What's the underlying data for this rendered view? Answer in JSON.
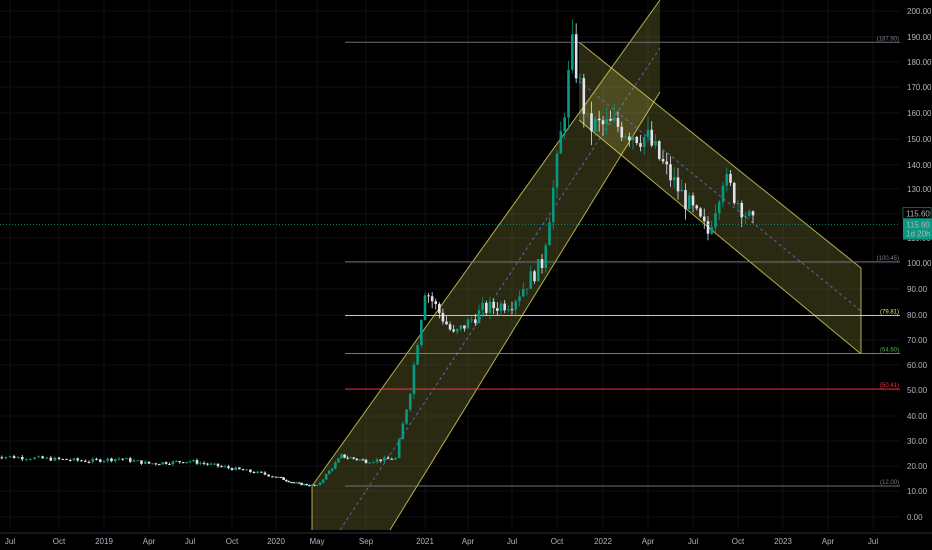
{
  "chart_data": {
    "type": "candlestick",
    "y_axis": {
      "scale": "log",
      "ticks": [
        "200.00",
        "190.00",
        "180.00",
        "170.00",
        "160.00",
        "150.00",
        "140.00",
        "130.00",
        "120.00",
        "110.00",
        "100.00",
        "90.00",
        "80.00",
        "70.00",
        "60.00",
        "50.00",
        "40.00",
        "30.00",
        "20.00",
        "10.00",
        "0.00"
      ]
    },
    "x_axis": {
      "ticks": [
        "Jul",
        "Oct",
        "2019",
        "Apr",
        "Jul",
        "Oct",
        "2020",
        "May",
        "Sep",
        "2021",
        "Apr",
        "Jul",
        "Oct",
        "2022",
        "Apr",
        "Jul",
        "Oct",
        "2023",
        "Apr",
        "Jul"
      ]
    },
    "last_price": {
      "value": "115.60",
      "countdown": "1d 20h",
      "ghost": "115.60",
      "color": "#089981"
    },
    "levels": [
      {
        "label": "(187.90)",
        "value": 187.9,
        "color": "#787b86"
      },
      {
        "label": "(100.45)",
        "value": 100.45,
        "color": "#787b86"
      },
      {
        "label": "(79.81)",
        "value": 79.81,
        "color": "#e8e361"
      },
      {
        "label": "(64.60)",
        "value": 64.6,
        "color": "#4caf50"
      },
      {
        "label": "(50.41)",
        "value": 50.41,
        "color": "#f23645"
      },
      {
        "label": "(12.00)",
        "value": 12.0,
        "color": "#787b86"
      }
    ],
    "channels": [
      {
        "name": "ascending",
        "color": "#e8e361"
      },
      {
        "name": "descending",
        "color": "#e8e361"
      }
    ],
    "colors": {
      "up": "#089981",
      "down": "#e0e3eb",
      "background": "#000000",
      "grid": "#2a2e39"
    },
    "price_path": [
      [
        "2018-06",
        24
      ],
      [
        "2018-09",
        23
      ],
      [
        "2018-12",
        22
      ],
      [
        "2019-02",
        23
      ],
      [
        "2019-04",
        21
      ],
      [
        "2019-07",
        22
      ],
      [
        "2019-10",
        19
      ],
      [
        "2019-12",
        17
      ],
      [
        "2020-03",
        13
      ],
      [
        "2020-05",
        12
      ],
      [
        "2020-07",
        24
      ],
      [
        "2020-09",
        22
      ],
      [
        "2020-11",
        23
      ],
      [
        "2020-12",
        50
      ],
      [
        "2021-01",
        90
      ],
      [
        "2021-03",
        72
      ],
      [
        "2021-05",
        82
      ],
      [
        "2021-07",
        85
      ],
      [
        "2021-09",
        100
      ],
      [
        "2021-10",
        140
      ],
      [
        "2021-11",
        185
      ],
      [
        "2021-12",
        155
      ],
      [
        "2022-02",
        155
      ],
      [
        "2022-04",
        150
      ],
      [
        "2022-06",
        130
      ],
      [
        "2022-08",
        112
      ],
      [
        "2022-09",
        135
      ],
      [
        "2022-11",
        115.6
      ]
    ]
  }
}
